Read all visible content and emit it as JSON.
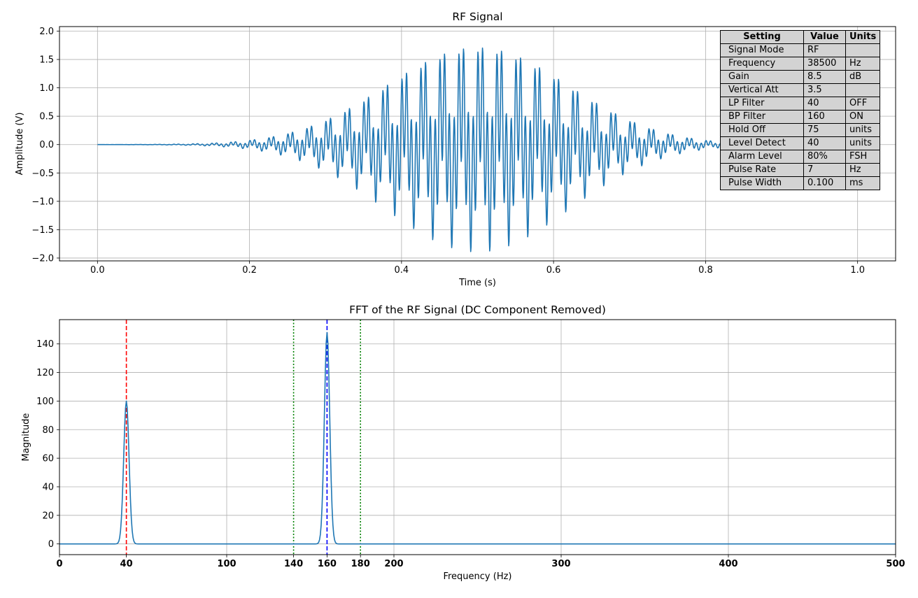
{
  "chart_data": [
    {
      "type": "line",
      "title": "RF Signal",
      "xlabel": "Time (s)",
      "ylabel": "Amplitude (V)",
      "xlim": [
        -0.05,
        1.05
      ],
      "ylim": [
        -2.05,
        2.08
      ],
      "xticks": [
        0.0,
        0.2,
        0.4,
        0.6,
        0.8,
        1.0
      ],
      "xtick_labels": [
        "0.0",
        "0.2",
        "0.4",
        "0.6",
        "0.8",
        "1.0"
      ],
      "yticks": [
        -2.0,
        -1.5,
        -1.0,
        -0.5,
        0.0,
        0.5,
        1.0,
        1.5,
        2.0
      ],
      "ytick_labels": [
        "−2.0",
        "−1.5",
        "−1.0",
        "−0.5",
        "0.0",
        "0.5",
        "1.0",
        "1.5",
        "2.0"
      ],
      "grid": true,
      "color": "#1f77b4",
      "series": [
        {
          "signal": {
            "envelope": "gaussian",
            "peak_amplitude": 1.9,
            "center_time": 0.5,
            "sigma": 0.12,
            "components_hz": [
              40,
              160
            ],
            "time_range": [
              0,
              1
            ],
            "samples": 2000
          }
        }
      ]
    },
    {
      "type": "line",
      "title": "FFT of the RF Signal (DC Component Removed)",
      "xlabel": "Frequency (Hz)",
      "ylabel": "Magnitude",
      "xlim": [
        0,
        500
      ],
      "ylim": [
        -7.5,
        157
      ],
      "xticks": [
        0,
        40,
        100,
        140,
        160,
        180,
        200,
        300,
        400,
        500
      ],
      "xtick_labels": [
        "0",
        "40",
        "100",
        "140",
        "160",
        "180",
        "200",
        "300",
        "400",
        "500"
      ],
      "grid_xticks": [
        0,
        100,
        200,
        300,
        400,
        500
      ],
      "yticks": [
        0,
        20,
        40,
        60,
        80,
        100,
        120,
        140
      ],
      "ytick_labels": [
        "0",
        "20",
        "40",
        "60",
        "80",
        "100",
        "120",
        "140"
      ],
      "grid": true,
      "color": "#1f77b4",
      "series": [
        {
          "peaks": [
            {
              "frequency": 40,
              "magnitude": 100,
              "width_hz": 1.6
            },
            {
              "frequency": 160,
              "magnitude": 148,
              "width_hz": 1.6
            }
          ]
        }
      ],
      "annotations": [
        {
          "type": "vline",
          "x": 40,
          "style": "dashed",
          "color": "#ff0000"
        },
        {
          "type": "vline",
          "x": 160,
          "style": "dashed",
          "color": "#0000ff"
        },
        {
          "type": "vline",
          "x": 140,
          "style": "dotted",
          "color": "#008000"
        },
        {
          "type": "vline",
          "x": 180,
          "style": "dotted",
          "color": "#008000"
        }
      ]
    }
  ],
  "settings_table": {
    "headers": [
      "Setting",
      "Value",
      "Units"
    ],
    "rows": [
      [
        "Signal Mode",
        "RF",
        ""
      ],
      [
        "Frequency",
        "38500",
        "Hz"
      ],
      [
        "Gain",
        "8.5",
        "dB"
      ],
      [
        "Vertical Att",
        "3.5",
        ""
      ],
      [
        "LP Filter",
        "40",
        "OFF"
      ],
      [
        "BP Filter",
        "160",
        "ON"
      ],
      [
        "Hold Off",
        "75",
        "units"
      ],
      [
        "Level Detect",
        "40",
        "units"
      ],
      [
        "Alarm Level",
        "80%",
        "FSH"
      ],
      [
        "Pulse Rate",
        "7",
        "Hz"
      ],
      [
        "Pulse Width",
        "0.100",
        "ms"
      ]
    ]
  }
}
